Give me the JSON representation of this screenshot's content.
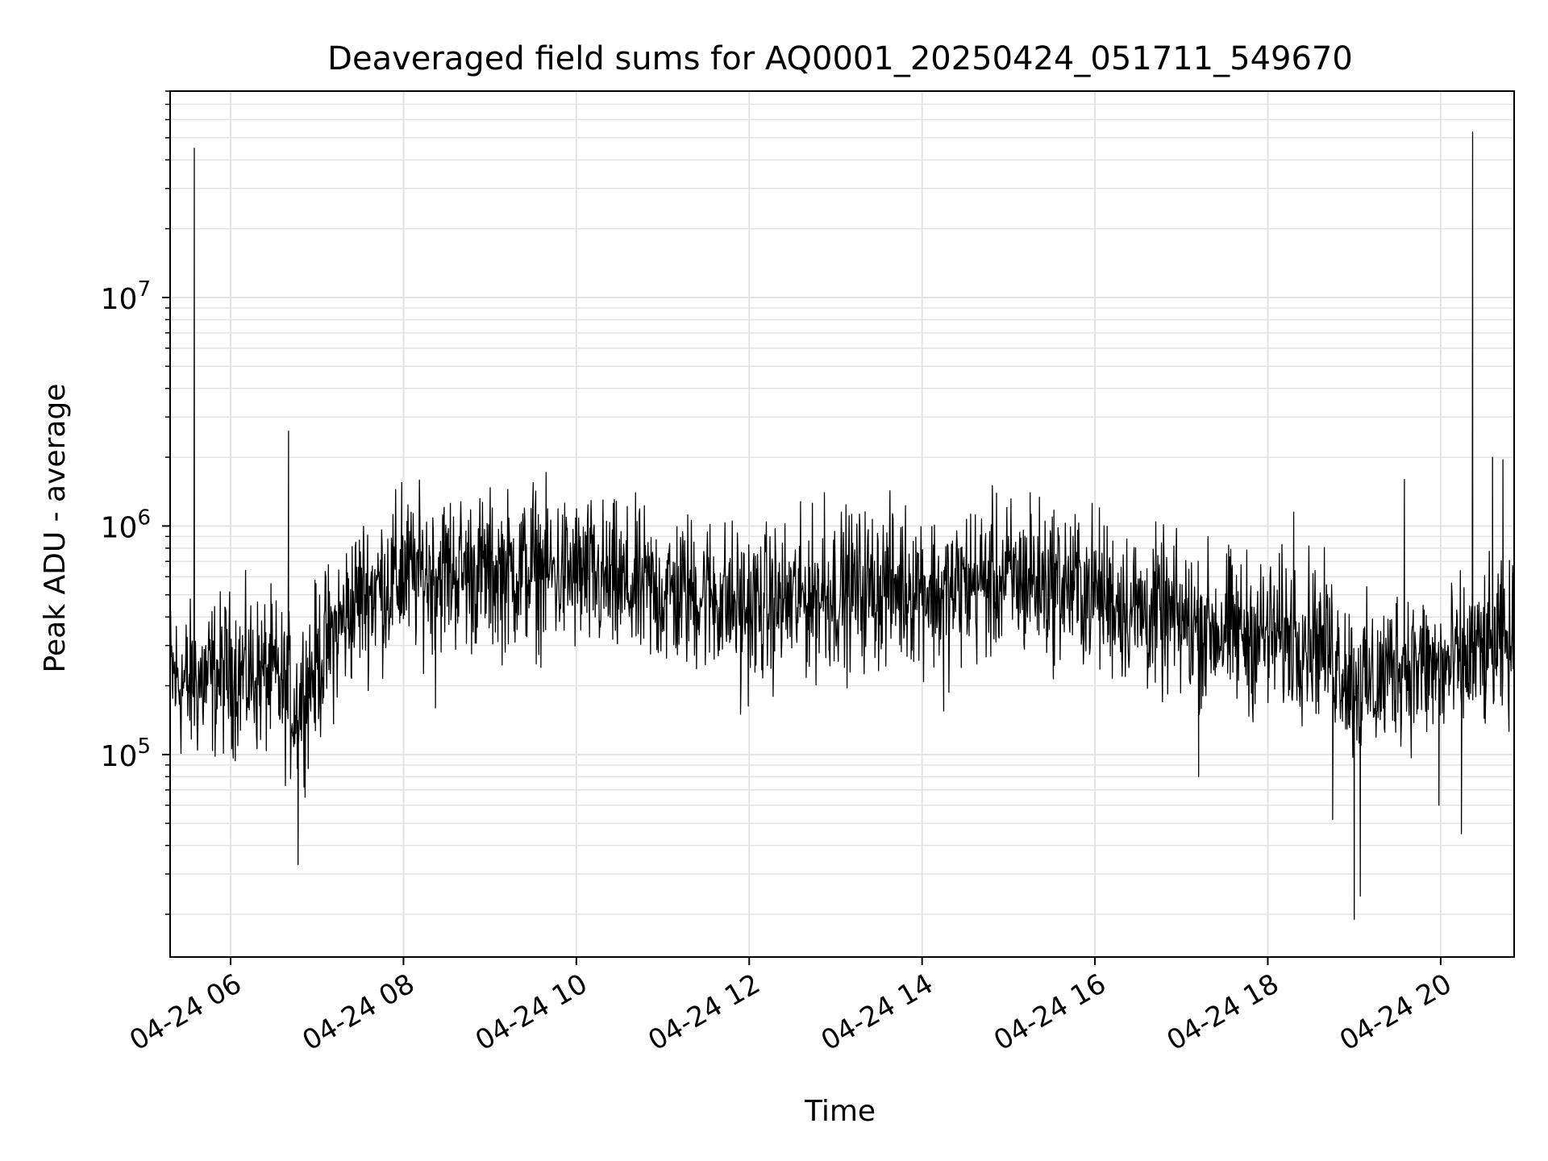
{
  "chart_data": {
    "type": "line",
    "title": "Deaveraged field sums for AQ0001_20250424_051711_549670",
    "xlabel": "Time",
    "ylabel": "Peak ADU - average",
    "x_tick_labels": [
      "04-24 06",
      "04-24 08",
      "04-24 10",
      "04-24 12",
      "04-24 14",
      "04-24 16",
      "04-24 18",
      "04-24 20"
    ],
    "x_tick_hours": [
      6,
      8,
      10,
      12,
      14,
      16,
      18,
      20
    ],
    "xlim_hours": [
      5.3,
      20.85
    ],
    "y_scale": "log",
    "y_tick_labels": [
      {
        "base": "10",
        "exp": "5",
        "value": 100000
      },
      {
        "base": "10",
        "exp": "6",
        "value": 1000000
      },
      {
        "base": "10",
        "exp": "7",
        "value": 10000000
      }
    ],
    "ylim": [
      13000,
      80000000
    ],
    "grid": true,
    "line_color": "#000000",
    "grid_color": "#e3e3e3",
    "series": [
      {
        "x_hours": [
          5.3,
          5.5,
          6.0,
          6.5,
          6.75,
          7.0,
          7.25,
          7.5,
          8.0,
          8.5,
          9.0,
          9.5,
          10.0,
          10.5,
          11.0,
          11.5,
          12.0,
          12.5,
          13.0,
          13.5,
          14.0,
          14.25,
          14.5,
          15.0,
          15.5,
          16.0,
          16.5,
          17.0,
          17.5,
          18.0,
          18.5,
          18.75,
          19.0,
          19.25,
          19.5,
          20.0,
          20.5,
          20.85
        ],
        "y_center": [
          220000,
          200000,
          230000,
          220000,
          160000,
          250000,
          360000,
          500000,
          600000,
          640000,
          620000,
          640000,
          610000,
          540000,
          510000,
          510000,
          430000,
          470000,
          520000,
          540000,
          560000,
          480000,
          560000,
          580000,
          570000,
          520000,
          430000,
          380000,
          350000,
          330000,
          340000,
          280000,
          210000,
          200000,
          260000,
          230000,
          280000,
          300000
        ]
      }
    ],
    "spikes": [
      {
        "x_hours": 5.58,
        "y": 45000000
      },
      {
        "x_hours": 6.67,
        "y": 2600000
      },
      {
        "x_hours": 6.78,
        "y": 33000
      },
      {
        "x_hours": 7.98,
        "y": 1550000
      },
      {
        "x_hours": 8.37,
        "y": 160000
      },
      {
        "x_hours": 9.5,
        "y": 1550000
      },
      {
        "x_hours": 11.9,
        "y": 150000
      },
      {
        "x_hours": 12.87,
        "y": 1400000
      },
      {
        "x_hours": 14.25,
        "y": 155000
      },
      {
        "x_hours": 15.25,
        "y": 1400000
      },
      {
        "x_hours": 17.2,
        "y": 80000
      },
      {
        "x_hours": 18.3,
        "y": 1150000
      },
      {
        "x_hours": 18.75,
        "y": 52000
      },
      {
        "x_hours": 19.0,
        "y": 19000
      },
      {
        "x_hours": 19.07,
        "y": 24000
      },
      {
        "x_hours": 19.58,
        "y": 1600000
      },
      {
        "x_hours": 19.98,
        "y": 60000
      },
      {
        "x_hours": 20.24,
        "y": 45000
      },
      {
        "x_hours": 20.37,
        "y": 53000000
      },
      {
        "x_hours": 20.6,
        "y": 2000000
      },
      {
        "x_hours": 20.72,
        "y": 1950000
      }
    ]
  }
}
